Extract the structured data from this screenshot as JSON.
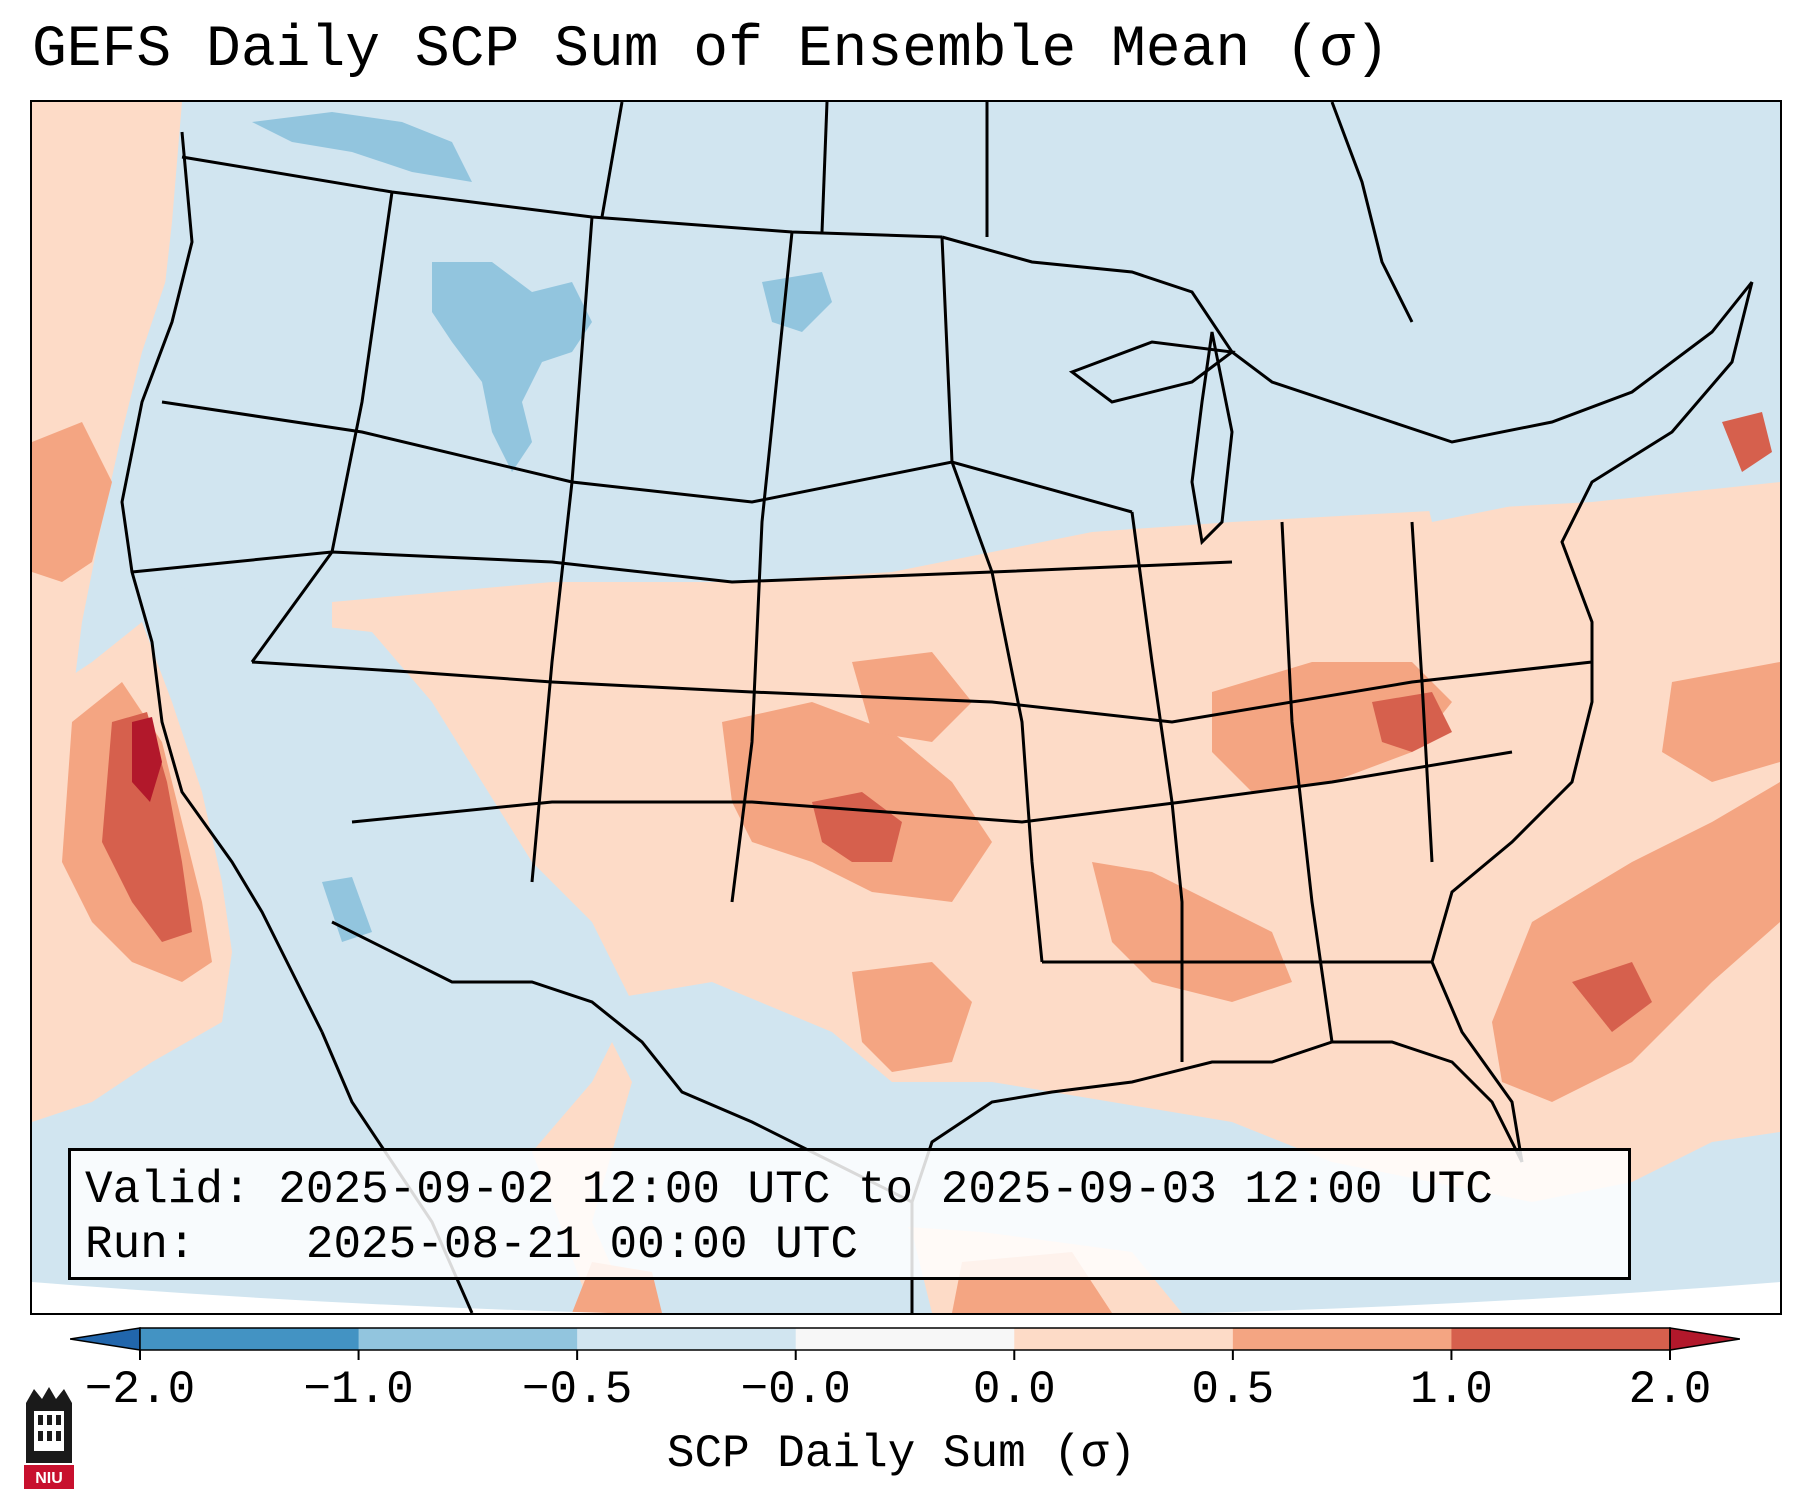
{
  "title": "GEFS Daily SCP Sum of Ensemble Mean (σ)",
  "info_box": {
    "valid_label": "Valid:",
    "valid_value": "2025-09-02 12:00 UTC to 2025-09-03 12:00 UTC",
    "run_label": "Run:",
    "run_value": "2025-08-21 00:00 UTC"
  },
  "colorbar": {
    "label": "SCP Daily Sum (σ)",
    "ticks": [
      "−2.0",
      "−1.0",
      "−0.5",
      "−0.0",
      "0.0",
      "0.5",
      "1.0",
      "2.0"
    ],
    "bins": [
      {
        "from": -2.0,
        "to": -1.0,
        "color": "#4393c3"
      },
      {
        "from": -1.0,
        "to": -0.5,
        "color": "#92c5de"
      },
      {
        "from": -0.5,
        "to": -0.0,
        "color": "#d1e5f0"
      },
      {
        "from": -0.0,
        "to": 0.0,
        "color": "#f7f7f7"
      },
      {
        "from": 0.0,
        "to": 0.5,
        "color": "#fddbc7"
      },
      {
        "from": 0.5,
        "to": 1.0,
        "color": "#f4a582"
      },
      {
        "from": 1.0,
        "to": 2.0,
        "color": "#d6604d"
      }
    ],
    "under_color": "#2166ac",
    "over_color": "#b2182b"
  },
  "field_colors": {
    "neg_strong": "#92c5de",
    "neg_weak": "#d1e5f0",
    "pos_weak": "#fddbc7",
    "pos_mid": "#f4a582",
    "pos_strong": "#d6604d",
    "pos_max": "#b2182b"
  },
  "logo": {
    "text": "NIU",
    "icon": "university-logo-icon"
  }
}
